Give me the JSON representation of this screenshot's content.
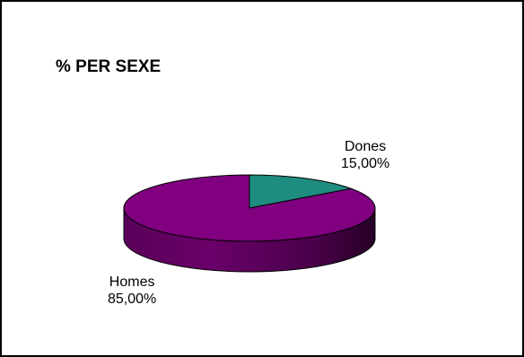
{
  "chart_data": {
    "type": "pie",
    "title": "% PER SEXE",
    "slices": [
      {
        "label": "Dones",
        "value": 15.0,
        "value_label": "15,00%",
        "color": "#1f8c80"
      },
      {
        "label": "Homes",
        "value": 85.0,
        "value_label": "85,00%",
        "color": "#800080"
      }
    ],
    "style": "3d-tilted",
    "legend": "none"
  }
}
